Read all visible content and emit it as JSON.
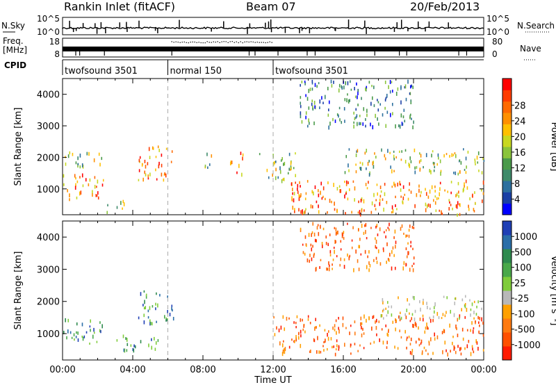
{
  "header": {
    "title": "Rankin Inlet (fitACF)",
    "beam": "Beam 07",
    "date": "20/Feb/2013"
  },
  "top_panels": {
    "nsky_label": "N.Sky",
    "nsky_ticks": [
      "10^5",
      "10^0"
    ],
    "nsearch_label": "N.Search",
    "freq_label_1": "Freq.",
    "freq_label_2": "[MHz]",
    "freq_ticks": [
      "18",
      "8"
    ],
    "nave_label": "Nave",
    "nave_ticks": [
      "80",
      "0"
    ],
    "cpid_label": "CPID",
    "cpid_segments": [
      {
        "label": "twofsound 3501",
        "start_hour": 0,
        "end_hour": 6
      },
      {
        "label": "normal 150",
        "start_hour": 6,
        "end_hour": 12
      },
      {
        "label": "twofsound 3501",
        "start_hour": 12,
        "end_hour": 24
      }
    ]
  },
  "chart_data": [
    {
      "type": "heatmap",
      "name": "power-panel",
      "ylabel": "Slant Range [km]",
      "y_ticks": [
        "1000",
        "2000",
        "3000",
        "4000"
      ],
      "ylim": [
        180,
        4500
      ],
      "xlim": [
        0,
        24
      ],
      "colorbar": {
        "label": "Power [dB]",
        "ticks": [
          "4",
          "8",
          "12",
          "16",
          "20",
          "24",
          "28"
        ],
        "colors": [
          "#0000ff",
          "#1a3fa5",
          "#2c6f9e",
          "#3e8a6a",
          "#4a9a4a",
          "#8ac43a",
          "#c8d820",
          "#ffc000",
          "#ff9000",
          "#ff6a00",
          "#ff3c00",
          "#ff0000"
        ]
      },
      "scatter_regions": [
        {
          "t": [
            0,
            2.3
          ],
          "r": [
            700,
            1500
          ],
          "level": "high"
        },
        {
          "t": [
            0,
            2.3
          ],
          "r": [
            1700,
            2200
          ],
          "level": "mid"
        },
        {
          "t": [
            2.5,
            3.6
          ],
          "r": [
            300,
            700
          ],
          "level": "mid"
        },
        {
          "t": [
            4.3,
            6.3
          ],
          "r": [
            1300,
            2400
          ],
          "level": "high"
        },
        {
          "t": [
            8.0,
            8.6
          ],
          "r": [
            1700,
            2300
          ],
          "level": "mid"
        },
        {
          "t": [
            9.5,
            10.3
          ],
          "r": [
            1500,
            2200
          ],
          "level": "high"
        },
        {
          "t": [
            11.2,
            13.3
          ],
          "r": [
            1300,
            2200
          ],
          "level": "mid"
        },
        {
          "t": [
            13.0,
            24.0
          ],
          "r": [
            200,
            1300
          ],
          "level": "high"
        },
        {
          "t": [
            16.0,
            24.0
          ],
          "r": [
            1500,
            2300
          ],
          "level": "mid"
        },
        {
          "t": [
            13.5,
            20.0
          ],
          "r": [
            3000,
            4500
          ],
          "level": "low"
        }
      ]
    },
    {
      "type": "heatmap",
      "name": "velocity-panel",
      "xlabel": "Time UT",
      "ylabel": "Slant Range [km]",
      "x_ticks": [
        "00:00",
        "04:00",
        "08:00",
        "12:00",
        "16:00",
        "20:00",
        "00:00"
      ],
      "y_ticks": [
        "1000",
        "2000",
        "3000",
        "4000"
      ],
      "ylim": [
        180,
        4500
      ],
      "xlim": [
        0,
        24
      ],
      "colorbar": {
        "label": "Velocity [m s⁻¹]",
        "ticks": [
          "1000",
          "500",
          "100",
          "25",
          "-25",
          "-100",
          "-500",
          "-1000"
        ],
        "colors": [
          "#1f3fb5",
          "#2a6ea8",
          "#2e8a4e",
          "#49a84a",
          "#7fcc3a",
          "#b8b8b8",
          "#ffa000",
          "#ff7a10",
          "#ff5000",
          "#ff1a00"
        ]
      },
      "scatter_regions": [
        {
          "t": [
            0,
            2.3
          ],
          "r": [
            700,
            1500
          ],
          "level": "toward"
        },
        {
          "t": [
            4.3,
            6.3
          ],
          "r": [
            1300,
            2400
          ],
          "level": "toward"
        },
        {
          "t": [
            3.0,
            5.5
          ],
          "r": [
            500,
            1000
          ],
          "level": "toward"
        },
        {
          "t": [
            12.0,
            24.0
          ],
          "r": [
            400,
            1600
          ],
          "level": "away"
        },
        {
          "t": [
            18.0,
            24.0
          ],
          "r": [
            1500,
            2200
          ],
          "level": "zero"
        },
        {
          "t": [
            13.5,
            20.0
          ],
          "r": [
            3000,
            4500
          ],
          "level": "away"
        }
      ]
    }
  ]
}
